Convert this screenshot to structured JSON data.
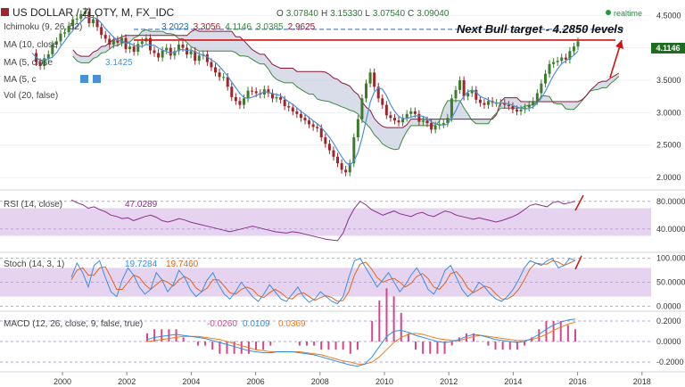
{
  "header": {
    "symbol": "US DOLLAR / ZLOTY, M, FX_IDC",
    "ohlc": [
      "O",
      "3.07840",
      "H",
      "3.15330",
      "L",
      "3.07540",
      "C",
      "3.09040"
    ],
    "realtime_label": "realtime",
    "price_badge": "4.1146"
  },
  "indicators": {
    "ichimoku": {
      "label": "Ichimoku (9, 26, 52)",
      "values": [
        "3.2023",
        "3.3056",
        "4.1146",
        "3.0385",
        "2.9625"
      ]
    },
    "ma10": {
      "label": "MA (10, close",
      "value": ""
    },
    "ma5": {
      "label": "MA (5, close",
      "value": "3.1425"
    },
    "ma5b": {
      "label": "MA (5, c"
    },
    "vol": {
      "label": "Vol (20, false)"
    }
  },
  "annotation": {
    "text": "Next Bull target - 4.2850 levels"
  },
  "colors": {
    "up": "#3a7d2a",
    "down": "#a0252a",
    "cloud": "#c9cde0",
    "senkou_a": "#3d8a3d",
    "senkou_b": "#8a1a3a",
    "ma_blue": "#4a90d9",
    "resistance": "#d01414",
    "target": "#5b7fc7",
    "arrow": "#d01414",
    "rsi_bg": "#e6d3f0",
    "rsi_line": "#8b2f8b",
    "stoch_k": "#3a8ee0",
    "stoch_d": "#e0651a",
    "macd_hist": "#d8458f",
    "macd_line": "#2e8fe0",
    "signal_line": "#f07a18",
    "badge": "#1e6b22"
  },
  "chart_data": [
    {
      "type": "candlestick",
      "title": "US DOLLAR / ZLOTY, M, FX_IDC",
      "x_ticks": [
        "2000",
        "2002",
        "2004",
        "2006",
        "2008",
        "2010",
        "2012",
        "2014",
        "2016",
        "2018"
      ],
      "ylim": [
        1.85,
        4.6
      ],
      "y_ticks": [
        "2.0000",
        "2.5000",
        "3.0000",
        "3.5000",
        "4.0000",
        "4.5000"
      ],
      "resistance_level": 4.12,
      "target_level": 4.285,
      "last_price": 4.1146,
      "closes": [
        3.92,
        3.78,
        3.72,
        3.84,
        3.9,
        4.05,
        4.1,
        4.22,
        4.24,
        4.34,
        4.44,
        4.45,
        4.52,
        4.56,
        4.38,
        4.44,
        4.32,
        4.2,
        4.14,
        4.05,
        4.12,
        4.08,
        4.15,
        3.98,
        4.02,
        3.94,
        4.06,
        4.1,
        4.15,
        3.96,
        3.92,
        3.85,
        3.96,
        4.0,
        3.88,
        3.95,
        4.05,
        4.0,
        3.9,
        3.95,
        3.8,
        3.88,
        3.9,
        3.78,
        3.7,
        3.62,
        3.55,
        3.55,
        3.4,
        3.24,
        3.18,
        3.12,
        3.22,
        3.34,
        3.33,
        3.3,
        3.28,
        3.36,
        3.3,
        3.22,
        3.24,
        3.2,
        3.1,
        3.08,
        3.02,
        2.98,
        2.92,
        2.88,
        2.82,
        2.78,
        2.76,
        2.62,
        2.52,
        2.42,
        2.32,
        2.22,
        2.12,
        2.08,
        2.22,
        2.62,
        2.9,
        3.22,
        3.45,
        3.62,
        3.4,
        3.22,
        3.12,
        2.96,
        2.92,
        2.88,
        2.85,
        2.92,
        2.98,
        3.02,
        2.98,
        2.86,
        2.88,
        2.84,
        2.74,
        2.8,
        2.82,
        2.84,
        2.92,
        3.22,
        3.35,
        3.5,
        3.25,
        3.3,
        3.35,
        3.2,
        3.15,
        3.12,
        3.18,
        3.15,
        3.15,
        3.15,
        3.12,
        3.1,
        3.05,
        3.02,
        3.05,
        3.08,
        3.12,
        3.18,
        3.3,
        3.45,
        3.6,
        3.75,
        3.78,
        3.8,
        3.85,
        3.82,
        3.95,
        4.02,
        4.1
      ]
    },
    {
      "type": "line",
      "title": "RSI (14, close)",
      "value_label": "47.0289",
      "ylim": [
        10,
        90
      ],
      "y_ticks": [
        "40.0000",
        "80.0000"
      ],
      "band": [
        30,
        70
      ],
      "values": [
        82,
        78,
        75,
        70,
        72,
        68,
        65,
        60,
        58,
        55,
        56,
        52,
        55,
        58,
        60,
        57,
        52,
        50,
        52,
        55,
        53,
        50,
        48,
        46,
        44,
        42,
        40,
        38,
        36,
        38,
        40,
        42,
        44,
        42,
        40,
        38,
        36,
        35,
        34,
        36,
        35,
        33,
        31,
        29,
        27,
        25,
        24,
        23,
        34,
        55,
        70,
        80,
        75,
        68,
        64,
        60,
        63,
        66,
        62,
        60,
        58,
        62,
        64,
        60,
        58,
        62,
        66,
        64,
        60,
        58,
        56,
        54,
        56,
        54,
        52,
        50,
        52,
        55,
        58,
        62,
        68,
        74,
        76,
        74,
        72,
        78,
        80,
        76,
        78,
        80
      ]
    },
    {
      "type": "line",
      "title": "Stoch (14, 3, 1)",
      "series_values": [
        "19.7284",
        "19.7460"
      ],
      "ylim": [
        -5,
        105
      ],
      "y_ticks": [
        "0.0000",
        "50.0000",
        "100.0000"
      ],
      "band": [
        20,
        80
      ],
      "k": [
        60,
        90,
        70,
        40,
        85,
        95,
        60,
        30,
        20,
        55,
        80,
        65,
        40,
        25,
        35,
        70,
        55,
        30,
        45,
        75,
        60,
        35,
        20,
        30,
        55,
        70,
        45,
        25,
        15,
        30,
        50,
        35,
        20,
        10,
        25,
        45,
        30,
        15,
        10,
        25,
        40,
        20,
        8,
        15,
        30,
        20,
        10,
        5,
        20,
        60,
        95,
        100,
        80,
        60,
        40,
        55,
        70,
        50,
        30,
        45,
        65,
        80,
        60,
        35,
        25,
        45,
        75,
        85,
        60,
        35,
        20,
        30,
        50,
        40,
        25,
        15,
        10,
        20,
        35,
        55,
        80,
        95,
        90,
        85,
        95,
        100,
        80,
        85,
        100,
        95
      ],
      "d": [
        55,
        75,
        80,
        65,
        65,
        80,
        82,
        60,
        35,
        35,
        50,
        65,
        60,
        45,
        35,
        45,
        55,
        50,
        42,
        55,
        62,
        55,
        38,
        30,
        38,
        55,
        55,
        42,
        28,
        25,
        35,
        40,
        35,
        22,
        18,
        28,
        35,
        28,
        18,
        15,
        25,
        28,
        20,
        12,
        18,
        22,
        18,
        10,
        12,
        30,
        65,
        88,
        92,
        78,
        60,
        50,
        55,
        58,
        50,
        40,
        48,
        62,
        68,
        58,
        40,
        35,
        48,
        68,
        72,
        58,
        38,
        28,
        35,
        42,
        38,
        25,
        15,
        15,
        22,
        35,
        55,
        78,
        90,
        88,
        88,
        95,
        92,
        85,
        90,
        96
      ]
    },
    {
      "type": "line",
      "title": "MACD (12, 26, close, 9, false, true)",
      "series_values": [
        "-0.0260",
        "0.0109",
        "0.0369"
      ],
      "ylim": [
        -0.27,
        0.27
      ],
      "y_ticks": [
        "-0.2000",
        "0.0000",
        "0.2000"
      ],
      "macd": [
        0.02,
        0.04,
        0.05,
        0.06,
        0.07,
        0.06,
        0.05,
        0.04,
        0.03,
        0.01,
        -0.01,
        -0.03,
        -0.05,
        -0.07,
        -0.09,
        -0.1,
        -0.11,
        -0.11,
        -0.1,
        -0.1,
        -0.1,
        -0.11,
        -0.12,
        -0.13,
        -0.15,
        -0.17,
        -0.19,
        -0.21,
        -0.23,
        -0.24,
        -0.22,
        -0.15,
        -0.05,
        0.05,
        0.1,
        0.11,
        0.09,
        0.06,
        0.04,
        0.02,
        0.0,
        -0.01,
        0.0,
        0.02,
        0.05,
        0.07,
        0.06,
        0.04,
        0.02,
        0.01,
        0.0,
        -0.01,
        0.0,
        0.03,
        0.07,
        0.12,
        0.16,
        0.19,
        0.21,
        0.22
      ],
      "signal": [
        0.0,
        0.01,
        0.02,
        0.03,
        0.04,
        0.05,
        0.05,
        0.05,
        0.04,
        0.03,
        0.02,
        0.0,
        -0.02,
        -0.04,
        -0.06,
        -0.08,
        -0.09,
        -0.1,
        -0.1,
        -0.1,
        -0.1,
        -0.1,
        -0.11,
        -0.12,
        -0.13,
        -0.15,
        -0.17,
        -0.19,
        -0.2,
        -0.22,
        -0.22,
        -0.2,
        -0.15,
        -0.08,
        -0.01,
        0.04,
        0.07,
        0.08,
        0.07,
        0.05,
        0.03,
        0.02,
        0.01,
        0.01,
        0.03,
        0.05,
        0.06,
        0.05,
        0.04,
        0.03,
        0.02,
        0.01,
        0.01,
        0.02,
        0.04,
        0.07,
        0.11,
        0.14,
        0.17,
        0.19
      ]
    }
  ]
}
